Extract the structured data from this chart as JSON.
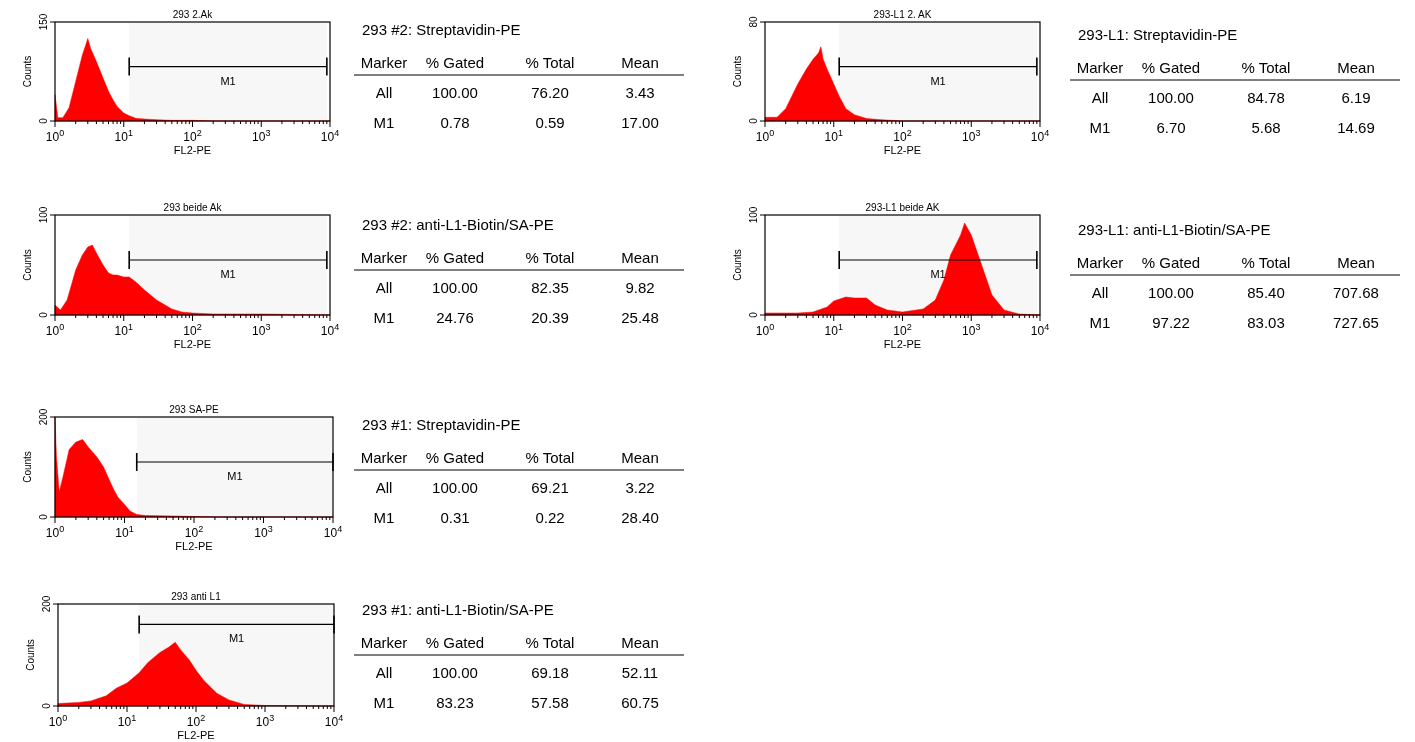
{
  "chart_data": [
    {
      "type": "area",
      "title": "293 2.Ak",
      "xlabel": "FL2-PE",
      "ylabel": "Counts",
      "log": "x",
      "xlim": [
        1,
        10000
      ],
      "ylim": [
        0,
        150
      ],
      "yticks": [
        0,
        150
      ],
      "xticks": [
        {
          "value": 1,
          "label": "10$^{0}$"
        },
        {
          "value": 10,
          "label": "10$^{1}$"
        },
        {
          "value": 100,
          "label": "10$^{2}$"
        },
        {
          "value": 1000,
          "label": "10$^{3}$"
        },
        {
          "value": 10000,
          "label": "10$^{4}$"
        }
      ],
      "bands": [
        {
          "axis": "x",
          "from": 12,
          "to": 9000,
          "label": "M1"
        }
      ],
      "series": [
        {
          "color": "#ff0000",
          "x": [
            1,
            1.1,
            1.3,
            1.6,
            2,
            2.5,
            2.8,
            3,
            3.3,
            4,
            5,
            6,
            7,
            8,
            10,
            12,
            15,
            20,
            30,
            50,
            100,
            200,
            10000
          ],
          "values": [
            40,
            5,
            5,
            20,
            60,
            100,
            115,
            125,
            110,
            90,
            65,
            45,
            32,
            22,
            12,
            8,
            4,
            3,
            2,
            1,
            1,
            0,
            0
          ]
        }
      ]
    },
    {
      "type": "other",
      "title": "293 #2: Streptavidin-PE",
      "annotations": [
        "Marker",
        "% Gated",
        "% Total",
        "Mean",
        "All",
        "100.00",
        "76.20",
        "3.43",
        "M1",
        "0.78",
        "0.59",
        "17.00"
      ]
    },
    {
      "type": "area",
      "title": "293-L1 2. AK",
      "xlabel": "FL2-PE",
      "ylabel": "Counts",
      "log": "x",
      "xlim": [
        1,
        10000
      ],
      "ylim": [
        0,
        80
      ],
      "yticks": [
        0,
        80
      ],
      "xticks": [
        {
          "value": 1,
          "label": "10$^{0}$"
        },
        {
          "value": 10,
          "label": "10$^{1}$"
        },
        {
          "value": 100,
          "label": "10$^{2}$"
        },
        {
          "value": 1000,
          "label": "10$^{3}$"
        },
        {
          "value": 10000,
          "label": "10$^{4}$"
        }
      ],
      "bands": [
        {
          "axis": "x",
          "from": 12,
          "to": 9000,
          "label": "M1"
        }
      ],
      "series": [
        {
          "color": "#ff0000",
          "x": [
            1,
            1.5,
            2,
            3,
            4,
            5,
            6,
            6.5,
            7,
            8,
            10,
            12,
            15,
            20,
            30,
            50,
            100,
            10000
          ],
          "values": [
            3,
            3,
            10,
            30,
            42,
            50,
            55,
            60,
            50,
            42,
            30,
            20,
            10,
            5,
            2,
            1,
            0,
            0
          ]
        }
      ]
    },
    {
      "type": "other",
      "title": "293-L1: Streptavidin-PE",
      "annotations": [
        "Marker",
        "% Gated",
        "% Total",
        "Mean",
        "All",
        "100.00",
        "84.78",
        "6.19",
        "M1",
        "6.70",
        "5.68",
        "14.69"
      ]
    },
    {
      "type": "area",
      "title": "293 beide Ak",
      "xlabel": "FL2-PE",
      "ylabel": "Counts",
      "log": "x",
      "xlim": [
        1,
        10000
      ],
      "ylim": [
        0,
        100
      ],
      "yticks": [
        0,
        100
      ],
      "xticks": [
        {
          "value": 1,
          "label": "10$^{0}$"
        },
        {
          "value": 10,
          "label": "10$^{1}$"
        },
        {
          "value": 100,
          "label": "10$^{2}$"
        },
        {
          "value": 1000,
          "label": "10$^{3}$"
        },
        {
          "value": 10000,
          "label": "10$^{4}$"
        }
      ],
      "bands": [
        {
          "axis": "x",
          "from": 12,
          "to": 9000,
          "label": "M1"
        }
      ],
      "series": [
        {
          "color": "#ff0000",
          "x": [
            1,
            1.2,
            1.5,
            2,
            2.5,
            3,
            3.5,
            4,
            5,
            6,
            7,
            8,
            10,
            12,
            15,
            20,
            30,
            50,
            70,
            100,
            200,
            1000,
            10000
          ],
          "values": [
            10,
            5,
            15,
            45,
            60,
            68,
            70,
            62,
            50,
            42,
            40,
            40,
            38,
            38,
            33,
            25,
            15,
            6,
            3,
            2,
            1,
            1,
            0
          ]
        }
      ]
    },
    {
      "type": "other",
      "title": "293 #2: anti-L1-Biotin/SA-PE",
      "annotations": [
        "Marker",
        "% Gated",
        "% Total",
        "Mean",
        "All",
        "100.00",
        "82.35",
        "9.82",
        "M1",
        "24.76",
        "20.39",
        "25.48"
      ]
    },
    {
      "type": "area",
      "title": "293-L1 beide AK",
      "xlabel": "FL2-PE",
      "ylabel": "Counts",
      "log": "x",
      "xlim": [
        1,
        10000
      ],
      "ylim": [
        0,
        100
      ],
      "yticks": [
        0,
        100
      ],
      "xticks": [
        {
          "value": 1,
          "label": "10$^{0}$"
        },
        {
          "value": 10,
          "label": "10$^{1}$"
        },
        {
          "value": 100,
          "label": "10$^{2}$"
        },
        {
          "value": 1000,
          "label": "10$^{3}$"
        },
        {
          "value": 10000,
          "label": "10$^{4}$"
        }
      ],
      "bands": [
        {
          "axis": "x",
          "from": 12,
          "to": 9000,
          "label": "M1"
        }
      ],
      "series": [
        {
          "color": "#ff0000",
          "x": [
            1,
            3,
            5,
            8,
            10,
            15,
            20,
            30,
            40,
            60,
            100,
            200,
            300,
            400,
            500,
            700,
            800,
            1000,
            1500,
            2000,
            3000,
            5000,
            10000
          ],
          "values": [
            2,
            2,
            3,
            8,
            14,
            18,
            17,
            17,
            10,
            5,
            3,
            6,
            15,
            35,
            60,
            80,
            92,
            80,
            45,
            20,
            5,
            1,
            0
          ]
        }
      ]
    },
    {
      "type": "other",
      "title": "293-L1: anti-L1-Biotin/SA-PE",
      "annotations": [
        "Marker",
        "% Gated",
        "% Total",
        "Mean",
        "All",
        "100.00",
        "85.40",
        "707.68",
        "M1",
        "97.22",
        "83.03",
        "727.65"
      ]
    },
    {
      "type": "area",
      "title": "293 SA-PE",
      "xlabel": "FL2-PE",
      "ylabel": "Counts",
      "log": "x",
      "xlim": [
        1,
        10000
      ],
      "ylim": [
        0,
        200
      ],
      "yticks": [
        0,
        200
      ],
      "xticks": [
        {
          "value": 1,
          "label": "10$^{0}$"
        },
        {
          "value": 10,
          "label": "10$^{1}$"
        },
        {
          "value": 100,
          "label": "10$^{2}$"
        },
        {
          "value": 1000,
          "label": "10$^{3}$"
        },
        {
          "value": 10000,
          "label": "10$^{4}$"
        }
      ],
      "bands": [
        {
          "axis": "x",
          "from": 15,
          "to": 10000,
          "label": "M1"
        }
      ],
      "series": [
        {
          "color": "#ff0000",
          "x": [
            1,
            1.05,
            1.15,
            1.3,
            1.6,
            2,
            2.5,
            3,
            4,
            5,
            6,
            7,
            8,
            10,
            12,
            15,
            20,
            50,
            100,
            200,
            10000
          ],
          "values": [
            200,
            120,
            50,
            80,
            135,
            150,
            155,
            140,
            120,
            100,
            75,
            55,
            40,
            25,
            12,
            5,
            3,
            2,
            1,
            0,
            0
          ]
        }
      ]
    },
    {
      "type": "other",
      "title": "293 #1: Streptavidin-PE",
      "annotations": [
        "Marker",
        "% Gated",
        "% Total",
        "Mean",
        "All",
        "100.00",
        "69.21",
        "3.22",
        "M1",
        "0.31",
        "0.22",
        "28.40"
      ]
    },
    {
      "type": "area",
      "title": "293 anti L1",
      "xlabel": "FL2-PE",
      "ylabel": "Counts",
      "log": "x",
      "xlim": [
        1,
        10000
      ],
      "ylim": [
        0,
        200
      ],
      "yticks": [
        0,
        200
      ],
      "xticks": [
        {
          "value": 1,
          "label": "10$^{0}$"
        },
        {
          "value": 10,
          "label": "10$^{1}$"
        },
        {
          "value": 100,
          "label": "10$^{2}$"
        },
        {
          "value": 1000,
          "label": "10$^{3}$"
        },
        {
          "value": 10000,
          "label": "10$^{4}$"
        }
      ],
      "bands": [
        {
          "axis": "x",
          "from": 15,
          "to": 10000,
          "label": "M1"
        }
      ],
      "series": [
        {
          "color": "#ff0000",
          "x": [
            1,
            2,
            3,
            5,
            7,
            10,
            15,
            20,
            30,
            40,
            50,
            60,
            80,
            100,
            130,
            200,
            300,
            500,
            1000,
            10000
          ],
          "values": [
            5,
            7,
            10,
            20,
            35,
            45,
            65,
            85,
            105,
            115,
            125,
            110,
            90,
            70,
            50,
            25,
            12,
            3,
            1,
            0
          ]
        }
      ]
    },
    {
      "type": "other",
      "title": "293 #1: anti-L1-Biotin/SA-PE",
      "annotations": [
        "Marker",
        "% Gated",
        "% Total",
        "Mean",
        "All",
        "100.00",
        "69.18",
        "52.11",
        "M1",
        "83.23",
        "57.58",
        "60.75"
      ]
    }
  ]
}
